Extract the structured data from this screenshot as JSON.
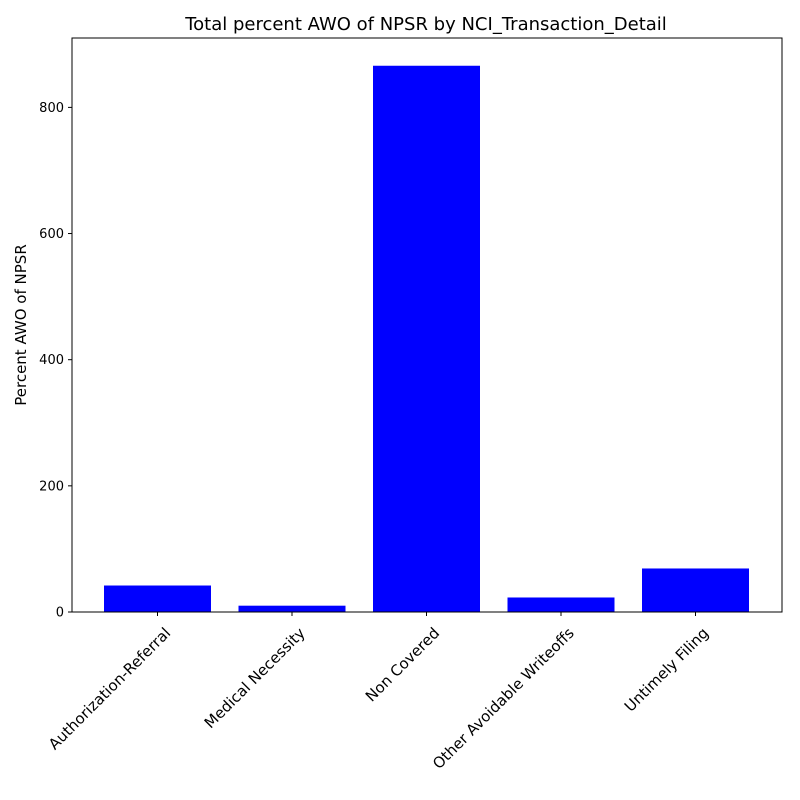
{
  "chart_data": {
    "type": "bar",
    "title": "Total percent AWO of NPSR by NCI_Transaction_Detail",
    "xlabel": "",
    "ylabel": "Percent AWO of NPSR",
    "categories": [
      "Authorization-Referral",
      "Medical Necessity",
      "Non Covered",
      "Other Avoidable Writeoffs",
      "Untimely Filing"
    ],
    "values": [
      42,
      10,
      866,
      23,
      69
    ],
    "ylim": [
      0,
      910
    ],
    "yticks": [
      0,
      200,
      400,
      600,
      800
    ],
    "bar_color": "#0000ff",
    "grid": false,
    "legend": "none",
    "x_tick_rotation_deg": 45
  }
}
